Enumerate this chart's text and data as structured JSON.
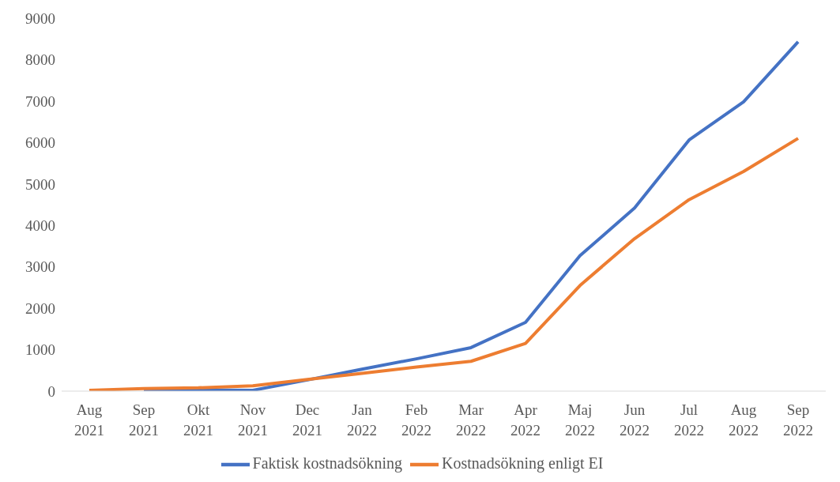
{
  "chart_data": {
    "type": "line",
    "categories": [
      "Aug 2021",
      "Sep 2021",
      "Okt 2021",
      "Nov 2021",
      "Dec 2021",
      "Jan 2022",
      "Feb 2022",
      "Mar 2022",
      "Apr 2022",
      "Maj 2022",
      "Jun 2022",
      "Jul 2022",
      "Aug 2022",
      "Sep 2022"
    ],
    "series": [
      {
        "name": "Faktisk kostnadsökning",
        "color": "#4472c4",
        "values": [
          null,
          20,
          30,
          20,
          270,
          530,
          780,
          1050,
          1660,
          3270,
          4420,
          6060,
          6980,
          8430
        ]
      },
      {
        "name": "Kostnadsökning enligt EI",
        "color": "#ed7d31",
        "values": [
          20,
          60,
          80,
          130,
          280,
          430,
          580,
          720,
          1150,
          2550,
          3680,
          4620,
          5300,
          6100
        ]
      }
    ],
    "ylim": [
      0,
      9000
    ],
    "yticks": [
      0,
      1000,
      2000,
      3000,
      4000,
      5000,
      6000,
      7000,
      8000,
      9000
    ],
    "grid": false,
    "legend": "bottom",
    "marker": "none",
    "line_style": "solid"
  }
}
